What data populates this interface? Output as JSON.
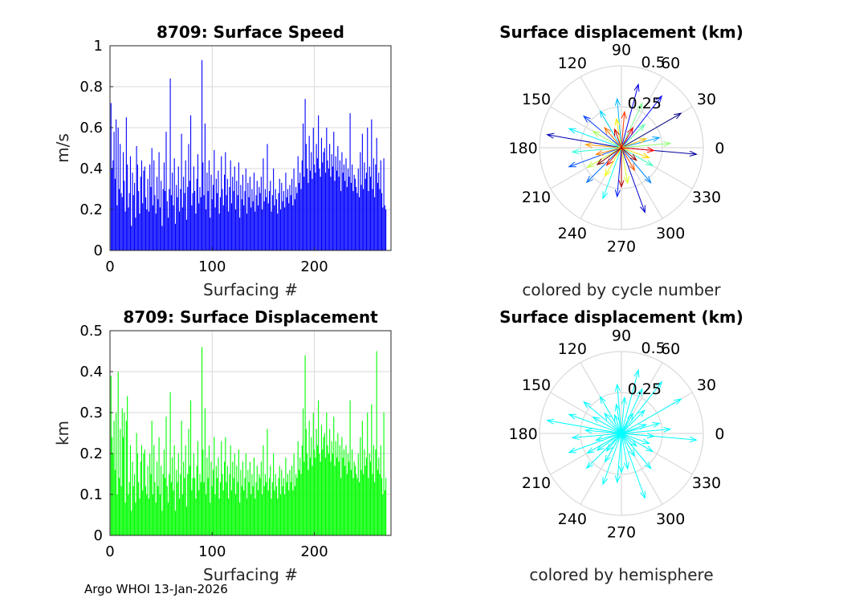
{
  "footer_text": "Argo WHOI 13-Jan-2026",
  "colors": {
    "speed_bar": "#0000ff",
    "disp_bar": "#00ff00",
    "hemisphere_arrow": "#00ffff",
    "grid": "#d9d9d9",
    "axis": "#262626"
  },
  "chart_data": [
    {
      "type": "bar",
      "title": "8709: Surface Speed",
      "xlabel": "Surfacing #",
      "ylabel": "m/s",
      "xlim": [
        0,
        275
      ],
      "ylim": [
        0,
        1
      ],
      "xticks": [
        "0",
        "100",
        "200"
      ],
      "yticks": [
        "0",
        "0.2",
        "0.4",
        "0.6",
        "0.8",
        "1"
      ],
      "values": [
        0.72,
        0.4,
        0.44,
        0.58,
        0.35,
        0.64,
        0.22,
        0.6,
        0.3,
        0.52,
        0.28,
        0.26,
        0.48,
        0.34,
        0.19,
        0.65,
        0.42,
        0.21,
        0.28,
        0.46,
        0.12,
        0.38,
        0.27,
        0.33,
        0.16,
        0.51,
        0.42,
        0.29,
        0.18,
        0.36,
        0.44,
        0.23,
        0.39,
        0.41,
        0.26,
        0.2,
        0.35,
        0.19,
        0.42,
        0.31,
        0.5,
        0.22,
        0.44,
        0.27,
        0.18,
        0.36,
        0.25,
        0.48,
        0.21,
        0.34,
        0.12,
        0.3,
        0.43,
        0.29,
        0.58,
        0.24,
        0.16,
        0.3,
        0.84,
        0.27,
        0.38,
        0.22,
        0.45,
        0.13,
        0.32,
        0.26,
        0.41,
        0.19,
        0.3,
        0.57,
        0.21,
        0.36,
        0.28,
        0.44,
        0.15,
        0.31,
        0.52,
        0.34,
        0.66,
        0.22,
        0.28,
        0.41,
        0.29,
        0.18,
        0.35,
        0.47,
        0.23,
        0.31,
        0.26,
        0.93,
        0.43,
        0.27,
        0.62,
        0.2,
        0.38,
        0.29,
        0.44,
        0.16,
        0.37,
        0.25,
        0.32,
        0.49,
        0.21,
        0.35,
        0.28,
        0.39,
        0.18,
        0.26,
        0.46,
        0.3,
        0.22,
        0.37,
        0.48,
        0.27,
        0.35,
        0.19,
        0.31,
        0.44,
        0.23,
        0.36,
        0.29,
        0.41,
        0.2,
        0.34,
        0.27,
        0.43,
        0.16,
        0.32,
        0.25,
        0.37,
        0.22,
        0.29,
        0.4,
        0.18,
        0.33,
        0.26,
        0.36,
        0.21,
        0.3,
        0.24,
        0.38,
        0.19,
        0.27,
        0.34,
        0.22,
        0.31,
        0.28,
        0.36,
        0.2,
        0.45,
        0.24,
        0.3,
        0.26,
        0.52,
        0.23,
        0.29,
        0.34,
        0.19,
        0.27,
        0.4,
        0.22,
        0.3,
        0.25,
        0.18,
        0.28,
        0.35,
        0.2,
        0.33,
        0.24,
        0.29,
        0.21,
        0.38,
        0.26,
        0.3,
        0.23,
        0.32,
        0.27,
        0.35,
        0.22,
        0.4,
        0.25,
        0.31,
        0.28,
        0.46,
        0.33,
        0.38,
        0.3,
        0.44,
        0.62,
        0.36,
        0.74,
        0.52,
        0.4,
        0.33,
        0.56,
        0.39,
        0.48,
        0.35,
        0.6,
        0.42,
        0.38,
        0.52,
        0.45,
        0.66,
        0.4,
        0.36,
        0.55,
        0.43,
        0.48,
        0.5,
        0.38,
        0.6,
        0.44,
        0.4,
        0.52,
        0.36,
        0.47,
        0.41,
        0.58,
        0.34,
        0.46,
        0.39,
        0.51,
        0.36,
        0.44,
        0.29,
        0.48,
        0.38,
        0.42,
        0.34,
        0.45,
        0.31,
        0.4,
        0.36,
        0.67,
        0.33,
        0.42,
        0.29,
        0.37,
        0.35,
        0.31,
        0.28,
        0.4,
        0.26,
        0.48,
        0.32,
        0.57,
        0.3,
        0.43,
        0.35,
        0.38,
        0.6,
        0.29,
        0.41,
        0.36,
        0.64,
        0.3,
        0.45,
        0.26,
        0.42,
        0.55,
        0.33,
        0.38,
        0.3,
        0.44,
        0.28,
        0.21,
        0.45,
        0.22,
        0.2
      ]
    },
    {
      "type": "bar",
      "title": "8709: Surface Displacement",
      "xlabel": "Surfacing #",
      "ylabel": "km",
      "xlim": [
        0,
        275
      ],
      "ylim": [
        0,
        0.5
      ],
      "xticks": [
        "0",
        "100",
        "200"
      ],
      "yticks": [
        "0",
        "0.1",
        "0.2",
        "0.3",
        "0.4",
        "0.5"
      ],
      "values": [
        0.39,
        0.24,
        0.2,
        0.28,
        0.16,
        0.3,
        0.1,
        0.4,
        0.14,
        0.26,
        0.12,
        0.31,
        0.24,
        0.3,
        0.08,
        0.28,
        0.34,
        0.1,
        0.13,
        0.22,
        0.06,
        0.18,
        0.12,
        0.15,
        0.08,
        0.25,
        0.2,
        0.13,
        0.09,
        0.18,
        0.22,
        0.11,
        0.2,
        0.21,
        0.12,
        0.1,
        0.17,
        0.09,
        0.2,
        0.15,
        0.28,
        0.1,
        0.22,
        0.13,
        0.08,
        0.18,
        0.12,
        0.24,
        0.1,
        0.17,
        0.06,
        0.15,
        0.21,
        0.14,
        0.29,
        0.12,
        0.08,
        0.15,
        0.35,
        0.13,
        0.19,
        0.11,
        0.22,
        0.06,
        0.16,
        0.13,
        0.2,
        0.09,
        0.15,
        0.28,
        0.1,
        0.18,
        0.14,
        0.22,
        0.07,
        0.15,
        0.26,
        0.17,
        0.33,
        0.11,
        0.14,
        0.2,
        0.14,
        0.09,
        0.17,
        0.23,
        0.11,
        0.15,
        0.13,
        0.46,
        0.21,
        0.13,
        0.31,
        0.1,
        0.19,
        0.14,
        0.22,
        0.08,
        0.18,
        0.12,
        0.16,
        0.24,
        0.1,
        0.17,
        0.14,
        0.19,
        0.09,
        0.13,
        0.23,
        0.15,
        0.11,
        0.18,
        0.24,
        0.13,
        0.17,
        0.09,
        0.15,
        0.22,
        0.11,
        0.18,
        0.14,
        0.2,
        0.1,
        0.17,
        0.13,
        0.21,
        0.08,
        0.16,
        0.12,
        0.18,
        0.11,
        0.14,
        0.2,
        0.09,
        0.16,
        0.13,
        0.18,
        0.1,
        0.15,
        0.12,
        0.19,
        0.09,
        0.13,
        0.17,
        0.11,
        0.15,
        0.14,
        0.18,
        0.1,
        0.22,
        0.12,
        0.15,
        0.13,
        0.26,
        0.11,
        0.14,
        0.17,
        0.09,
        0.13,
        0.2,
        0.11,
        0.15,
        0.12,
        0.09,
        0.14,
        0.17,
        0.1,
        0.16,
        0.12,
        0.14,
        0.1,
        0.19,
        0.13,
        0.15,
        0.11,
        0.16,
        0.13,
        0.17,
        0.11,
        0.2,
        0.12,
        0.15,
        0.14,
        0.23,
        0.16,
        0.19,
        0.15,
        0.22,
        0.31,
        0.18,
        0.44,
        0.26,
        0.2,
        0.16,
        0.28,
        0.19,
        0.24,
        0.17,
        0.3,
        0.21,
        0.19,
        0.26,
        0.22,
        0.33,
        0.2,
        0.18,
        0.27,
        0.21,
        0.24,
        0.25,
        0.19,
        0.3,
        0.22,
        0.2,
        0.26,
        0.18,
        0.23,
        0.2,
        0.29,
        0.17,
        0.23,
        0.19,
        0.25,
        0.18,
        0.22,
        0.14,
        0.24,
        0.19,
        0.21,
        0.17,
        0.22,
        0.15,
        0.2,
        0.18,
        0.33,
        0.16,
        0.21,
        0.14,
        0.18,
        0.17,
        0.15,
        0.14,
        0.2,
        0.13,
        0.24,
        0.16,
        0.28,
        0.15,
        0.21,
        0.17,
        0.19,
        0.3,
        0.14,
        0.2,
        0.18,
        0.32,
        0.15,
        0.22,
        0.13,
        0.21,
        0.45,
        0.16,
        0.19,
        0.15,
        0.22,
        0.14,
        0.1,
        0.3,
        0.11,
        0.14
      ]
    },
    {
      "type": "polar",
      "title": "Surface displacement (km)",
      "caption": "colored by cycle number",
      "rlim": [
        0,
        0.5
      ],
      "rticks": [
        "0.25",
        "0.5"
      ],
      "angle_ticks": [
        "0",
        "30",
        "60",
        "90",
        "120",
        "150",
        "180",
        "210",
        "240",
        "270",
        "300",
        "330"
      ],
      "color_by": "cycle_number",
      "colormap": "jet",
      "vectors": [
        {
          "angle": 30,
          "r": 0.42
        },
        {
          "angle": 355,
          "r": 0.46
        },
        {
          "angle": 170,
          "r": 0.46
        },
        {
          "angle": 290,
          "r": 0.42
        },
        {
          "angle": 75,
          "r": 0.4
        },
        {
          "angle": 52,
          "r": 0.4
        },
        {
          "angle": 265,
          "r": 0.3
        },
        {
          "angle": 140,
          "r": 0.3
        },
        {
          "angle": 200,
          "r": 0.34
        },
        {
          "angle": 225,
          "r": 0.3
        },
        {
          "angle": 310,
          "r": 0.28
        },
        {
          "angle": 15,
          "r": 0.24
        },
        {
          "angle": 95,
          "r": 0.3
        },
        {
          "angle": 120,
          "r": 0.26
        },
        {
          "angle": 160,
          "r": 0.34
        },
        {
          "angle": 250,
          "r": 0.33
        },
        {
          "angle": 185,
          "r": 0.3
        },
        {
          "angle": 330,
          "r": 0.22
        },
        {
          "angle": 45,
          "r": 0.2
        },
        {
          "angle": 65,
          "r": 0.3
        },
        {
          "angle": 5,
          "r": 0.3
        },
        {
          "angle": 150,
          "r": 0.2
        },
        {
          "angle": 210,
          "r": 0.24
        },
        {
          "angle": 280,
          "r": 0.22
        },
        {
          "angle": 240,
          "r": 0.2
        },
        {
          "angle": 100,
          "r": 0.18
        },
        {
          "angle": 340,
          "r": 0.18
        },
        {
          "angle": 20,
          "r": 0.16
        },
        {
          "angle": 175,
          "r": 0.22
        },
        {
          "angle": 195,
          "r": 0.16
        },
        {
          "angle": 130,
          "r": 0.16
        },
        {
          "angle": 300,
          "r": 0.16
        },
        {
          "angle": 85,
          "r": 0.22
        },
        {
          "angle": 230,
          "r": 0.14
        },
        {
          "angle": 355,
          "r": 0.2
        },
        {
          "angle": 60,
          "r": 0.14
        },
        {
          "angle": 110,
          "r": 0.12
        },
        {
          "angle": 270,
          "r": 0.24
        },
        {
          "angle": 320,
          "r": 0.12
        },
        {
          "angle": 215,
          "r": 0.18
        }
      ]
    },
    {
      "type": "polar",
      "title": "Surface displacement (km)",
      "caption": "colored by hemisphere",
      "rlim": [
        0,
        0.5
      ],
      "rticks": [
        "0.25",
        "0.5"
      ],
      "angle_ticks": [
        "0",
        "30",
        "60",
        "90",
        "120",
        "150",
        "180",
        "210",
        "240",
        "270",
        "300",
        "330"
      ],
      "color_by": "hemisphere",
      "colormap": "single",
      "vectors": [
        {
          "angle": 30,
          "r": 0.42
        },
        {
          "angle": 355,
          "r": 0.46
        },
        {
          "angle": 170,
          "r": 0.46
        },
        {
          "angle": 290,
          "r": 0.42
        },
        {
          "angle": 75,
          "r": 0.4
        },
        {
          "angle": 52,
          "r": 0.4
        },
        {
          "angle": 265,
          "r": 0.3
        },
        {
          "angle": 140,
          "r": 0.3
        },
        {
          "angle": 200,
          "r": 0.34
        },
        {
          "angle": 225,
          "r": 0.3
        },
        {
          "angle": 310,
          "r": 0.28
        },
        {
          "angle": 15,
          "r": 0.24
        },
        {
          "angle": 95,
          "r": 0.3
        },
        {
          "angle": 120,
          "r": 0.26
        },
        {
          "angle": 160,
          "r": 0.34
        },
        {
          "angle": 250,
          "r": 0.33
        },
        {
          "angle": 185,
          "r": 0.3
        },
        {
          "angle": 330,
          "r": 0.22
        },
        {
          "angle": 45,
          "r": 0.2
        },
        {
          "angle": 65,
          "r": 0.3
        },
        {
          "angle": 5,
          "r": 0.3
        },
        {
          "angle": 150,
          "r": 0.2
        },
        {
          "angle": 210,
          "r": 0.24
        },
        {
          "angle": 280,
          "r": 0.22
        },
        {
          "angle": 240,
          "r": 0.2
        },
        {
          "angle": 100,
          "r": 0.18
        },
        {
          "angle": 340,
          "r": 0.18
        },
        {
          "angle": 20,
          "r": 0.16
        },
        {
          "angle": 175,
          "r": 0.22
        },
        {
          "angle": 195,
          "r": 0.16
        },
        {
          "angle": 130,
          "r": 0.16
        },
        {
          "angle": 300,
          "r": 0.16
        },
        {
          "angle": 85,
          "r": 0.22
        },
        {
          "angle": 230,
          "r": 0.14
        },
        {
          "angle": 355,
          "r": 0.2
        },
        {
          "angle": 60,
          "r": 0.14
        },
        {
          "angle": 110,
          "r": 0.12
        },
        {
          "angle": 270,
          "r": 0.24
        },
        {
          "angle": 320,
          "r": 0.12
        },
        {
          "angle": 215,
          "r": 0.18
        }
      ]
    }
  ]
}
